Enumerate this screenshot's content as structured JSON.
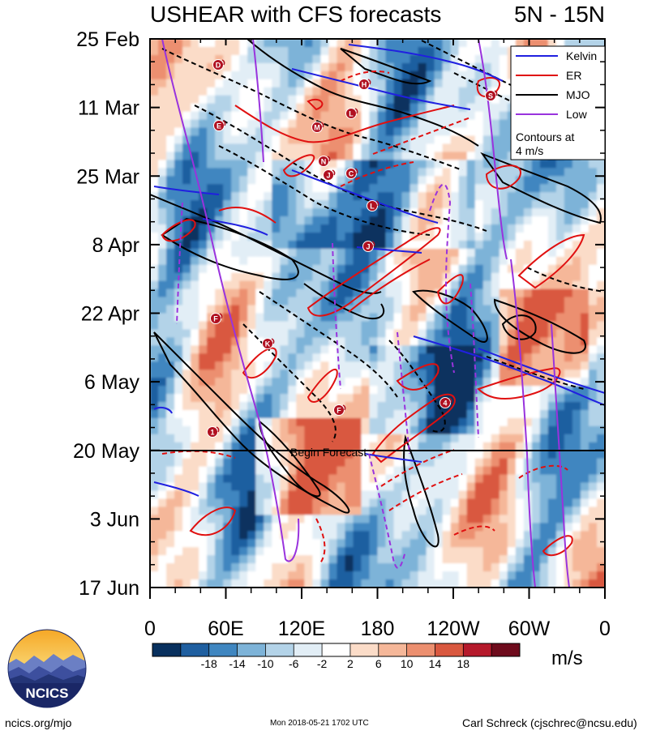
{
  "chart_data": {
    "type": "heatmap",
    "title": "USHEAR with CFS forecasts",
    "region": "5N - 15N",
    "y_tick_labels": [
      "25 Feb",
      "11 Mar",
      "25 Mar",
      "8 Apr",
      "22 Apr",
      "6 May",
      "20 May",
      "3 Jun",
      "17 Jun"
    ],
    "y_range": [
      "2018-02-25",
      "2018-06-17"
    ],
    "x_tick_labels": [
      "0",
      "60E",
      "120E",
      "180",
      "120W",
      "60W",
      "0"
    ],
    "x_range": [
      0,
      360
    ],
    "colorbar": {
      "tick_labels": [
        "-18",
        "-14",
        "-10",
        "-6",
        "-2",
        "2",
        "6",
        "10",
        "14",
        "18"
      ],
      "colors": [
        "#08305e",
        "#1f5fa0",
        "#3f86c0",
        "#7db3d8",
        "#b3d3e8",
        "#e2eef6",
        "#ffffff",
        "#fbdcc8",
        "#f5b799",
        "#ec8f6f",
        "#d9583f",
        "#b5192b",
        "#6e0b1c"
      ],
      "unit": "m/s"
    },
    "legend": {
      "position": "top-right",
      "entries": [
        {
          "name": "Kelvin",
          "color": "#2020e0"
        },
        {
          "name": "ER",
          "color": "#e01010"
        },
        {
          "name": "MJO",
          "color": "#000000"
        },
        {
          "name": "Low",
          "color": "#9933dd"
        }
      ],
      "note_line1": "Contours at",
      "note_line2": "4 m/s"
    },
    "forecast_label": "Begin Forecast",
    "forecast_start": "2018-05-20",
    "storm_markers": [
      "D",
      "H",
      "E",
      "L",
      "M",
      "C",
      "N",
      "J",
      "L",
      "J",
      "K",
      "F",
      "F",
      "4",
      "1",
      "S"
    ]
  },
  "footer": {
    "left": "ncics.org/mjo",
    "center": "Mon 2018-05-21 1702 UTC",
    "right": "Carl Schreck (cjschrec@ncsu.edu)",
    "logo_text": "NCICS"
  }
}
